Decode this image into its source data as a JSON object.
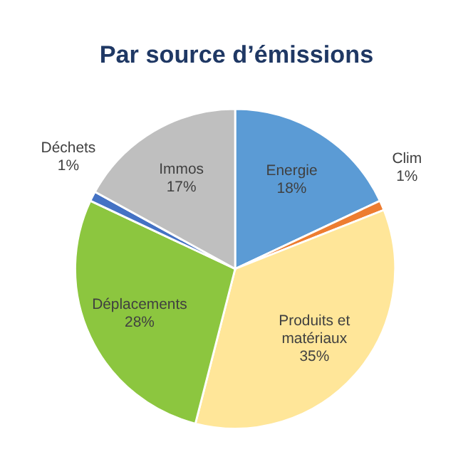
{
  "chart_data": {
    "type": "pie",
    "title": "Par source d’émissions",
    "categories": [
      "Energie",
      "Clim",
      "Produits et matériaux",
      "Déplacements",
      "Déchets",
      "Immos"
    ],
    "values": [
      18,
      1,
      35,
      28,
      1,
      17
    ],
    "colors": [
      "#5b9bd5",
      "#ed7d31",
      "#ffe699",
      "#8cc63f",
      "#4472c4",
      "#bfbfbf"
    ],
    "value_labels": [
      "18%",
      "1%",
      "35%",
      "28%",
      "1%",
      "17%"
    ]
  }
}
